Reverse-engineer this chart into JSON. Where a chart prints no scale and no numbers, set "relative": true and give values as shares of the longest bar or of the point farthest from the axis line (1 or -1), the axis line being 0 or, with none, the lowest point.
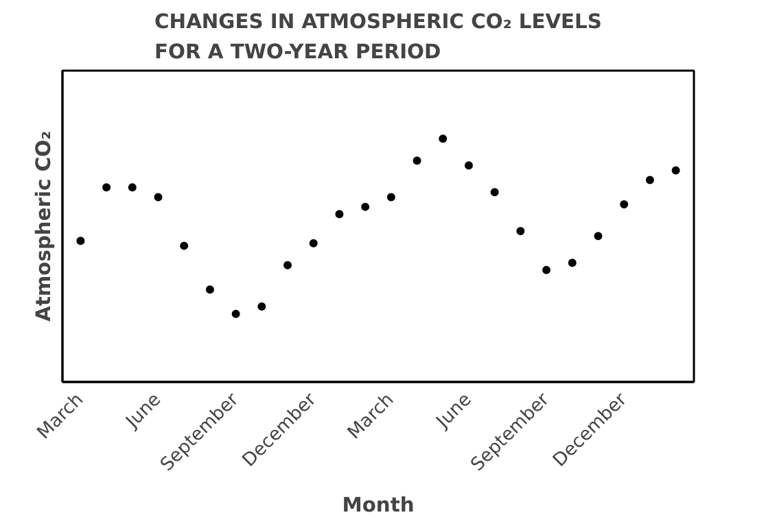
{
  "chart_data": {
    "type": "scatter",
    "title": "CHANGES IN ATMOSPHERIC CO₂ LEVELS\nFOR A TWO-YEAR PERIOD",
    "xlabel": "Month",
    "ylabel": "Atmospheric CO₂",
    "relative": true,
    "marker": "circle",
    "grid": false,
    "categories": [
      "March",
      null,
      null,
      "June",
      null,
      null,
      "September",
      null,
      null,
      "December",
      null,
      null,
      "March",
      null,
      null,
      "June",
      null,
      null,
      "September",
      null,
      null,
      "December",
      null,
      null
    ],
    "series": [
      {
        "color": "#000000",
        "values": [
          0.58,
          0.8,
          0.8,
          0.76,
          0.56,
          0.38,
          0.28,
          0.31,
          0.48,
          0.57,
          0.69,
          0.72,
          0.76,
          0.91,
          1,
          0.89,
          0.78,
          0.62,
          0.46,
          0.49,
          0.6,
          0.73,
          0.83,
          0.87
        ]
      }
    ]
  }
}
